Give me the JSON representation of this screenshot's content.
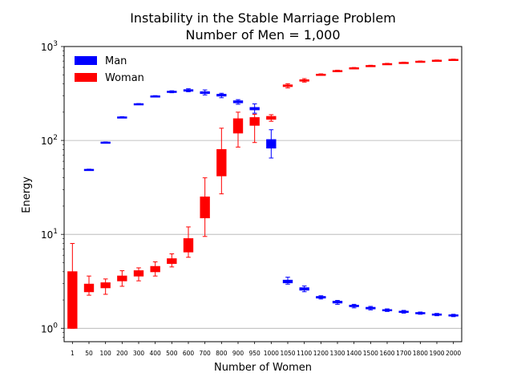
{
  "chart_data": {
    "type": "box",
    "title": "Instability in the Stable Marriage Problem",
    "subtitle": "Number of Men = 1,000",
    "xlabel": "Number of Women",
    "ylabel": "Energy",
    "yscale": "log",
    "ylim": [
      0.72,
      1000
    ],
    "yticks": [
      {
        "value": 1,
        "base": "10",
        "exp": "0"
      },
      {
        "value": 10,
        "base": "10",
        "exp": "1"
      },
      {
        "value": 100,
        "base": "10",
        "exp": "2"
      },
      {
        "value": 1000,
        "base": "10",
        "exp": "3"
      }
    ],
    "grid": "y-major",
    "legend_position": "top-left",
    "categories": [
      "1",
      "50",
      "100",
      "200",
      "300",
      "400",
      "500",
      "600",
      "700",
      "800",
      "900",
      "950",
      "1000",
      "1050",
      "1100",
      "1200",
      "1300",
      "1400",
      "1500",
      "1600",
      "1700",
      "1800",
      "1900",
      "2000"
    ],
    "series": [
      {
        "name": "Man",
        "color": "#0000ff",
        "boxes": [
          null,
          {
            "whislo": 48.5,
            "q1": 48.8,
            "med": 49,
            "q3": 49.2,
            "whishi": 49.5
          },
          {
            "whislo": 94.5,
            "q1": 95,
            "med": 95.5,
            "q3": 96,
            "whishi": 96.5
          },
          {
            "whislo": 175,
            "q1": 176,
            "med": 177,
            "q3": 178,
            "whishi": 179
          },
          {
            "whislo": 243,
            "q1": 244,
            "med": 245,
            "q3": 246,
            "whishi": 247
          },
          {
            "whislo": 292,
            "q1": 294,
            "med": 296,
            "q3": 298,
            "whishi": 300
          },
          {
            "whislo": 322,
            "q1": 326,
            "med": 330,
            "q3": 334,
            "whishi": 338
          },
          {
            "whislo": 330,
            "q1": 335,
            "med": 340,
            "q3": 347,
            "whishi": 355
          },
          {
            "whislo": 305,
            "q1": 316,
            "med": 322,
            "q3": 330,
            "whishi": 345
          },
          {
            "whislo": 285,
            "q1": 297,
            "med": 303,
            "q3": 310,
            "whishi": 318
          },
          {
            "whislo": 243,
            "q1": 252,
            "med": 258,
            "q3": 264,
            "whishi": 272
          },
          {
            "whislo": 195,
            "q1": 212,
            "med": 218,
            "q3": 224,
            "whishi": 245
          },
          {
            "whislo": 65,
            "q1": 83,
            "med": 90,
            "q3": 102,
            "whishi": 130
          },
          {
            "whislo": 2.95,
            "q1": 3.05,
            "med": 3.15,
            "q3": 3.25,
            "whishi": 3.5
          },
          {
            "whislo": 2.45,
            "q1": 2.55,
            "med": 2.62,
            "q3": 2.7,
            "whishi": 2.82
          },
          {
            "whislo": 2.05,
            "q1": 2.1,
            "med": 2.14,
            "q3": 2.18,
            "whishi": 2.22
          },
          {
            "whislo": 1.8,
            "q1": 1.86,
            "med": 1.9,
            "q3": 1.94,
            "whishi": 1.98
          },
          {
            "whislo": 1.65,
            "q1": 1.7,
            "med": 1.73,
            "q3": 1.76,
            "whishi": 1.8
          },
          {
            "whislo": 1.57,
            "q1": 1.61,
            "med": 1.64,
            "q3": 1.67,
            "whishi": 1.71
          },
          {
            "whislo": 1.51,
            "q1": 1.54,
            "med": 1.56,
            "q3": 1.58,
            "whishi": 1.61
          },
          {
            "whislo": 1.45,
            "q1": 1.48,
            "med": 1.5,
            "q3": 1.52,
            "whishi": 1.55
          },
          {
            "whislo": 1.41,
            "q1": 1.43,
            "med": 1.45,
            "q3": 1.47,
            "whishi": 1.49
          },
          {
            "whislo": 1.36,
            "q1": 1.38,
            "med": 1.4,
            "q3": 1.42,
            "whishi": 1.44
          },
          {
            "whislo": 1.33,
            "q1": 1.35,
            "med": 1.37,
            "q3": 1.39,
            "whishi": 1.41
          }
        ]
      },
      {
        "name": "Woman",
        "color": "#ff0000",
        "boxes": [
          {
            "whislo": 1,
            "q1": 1,
            "med": 2,
            "q3": 4,
            "whishi": 8
          },
          {
            "whislo": 2.25,
            "q1": 2.45,
            "med": 2.7,
            "q3": 2.95,
            "whishi": 3.6
          },
          {
            "whislo": 2.3,
            "q1": 2.7,
            "med": 2.85,
            "q3": 3.05,
            "whishi": 3.35
          },
          {
            "whislo": 2.8,
            "q1": 3.2,
            "med": 3.4,
            "q3": 3.6,
            "whishi": 4.1
          },
          {
            "whislo": 3.2,
            "q1": 3.6,
            "med": 3.85,
            "q3": 4.1,
            "whishi": 4.4
          },
          {
            "whislo": 3.6,
            "q1": 4.0,
            "med": 4.25,
            "q3": 4.55,
            "whishi": 5.1
          },
          {
            "whislo": 4.5,
            "q1": 4.9,
            "med": 5.2,
            "q3": 5.5,
            "whishi": 6.2
          },
          {
            "whislo": 5.7,
            "q1": 6.5,
            "med": 7.5,
            "q3": 9.0,
            "whishi": 12
          },
          {
            "whislo": 9.5,
            "q1": 15,
            "med": 19,
            "q3": 25,
            "whishi": 40
          },
          {
            "whislo": 27,
            "q1": 42,
            "med": 55,
            "q3": 80,
            "whishi": 135
          },
          {
            "whislo": 85,
            "q1": 120,
            "med": 140,
            "q3": 170,
            "whishi": 200
          },
          {
            "whislo": 95,
            "q1": 145,
            "med": 160,
            "q3": 175,
            "whishi": 190
          },
          {
            "whislo": 160,
            "q1": 168,
            "med": 172,
            "q3": 180,
            "whishi": 188
          },
          {
            "whislo": 362,
            "q1": 375,
            "med": 382,
            "q3": 390,
            "whishi": 402
          },
          {
            "whislo": 418,
            "q1": 428,
            "med": 435,
            "q3": 442,
            "whishi": 455
          },
          {
            "whislo": 495,
            "q1": 500,
            "med": 503,
            "q3": 507,
            "whishi": 512
          },
          {
            "whislo": 540,
            "q1": 545,
            "med": 550,
            "q3": 555,
            "whishi": 560
          },
          {
            "whislo": 582,
            "q1": 587,
            "med": 590,
            "q3": 594,
            "whishi": 598
          },
          {
            "whislo": 615,
            "q1": 620,
            "med": 624,
            "q3": 628,
            "whishi": 632
          },
          {
            "whislo": 645,
            "q1": 650,
            "med": 654,
            "q3": 658,
            "whishi": 662
          },
          {
            "whislo": 668,
            "q1": 672,
            "med": 675,
            "q3": 678,
            "whishi": 682
          },
          {
            "whislo": 688,
            "q1": 692,
            "med": 695,
            "q3": 698,
            "whishi": 702
          },
          {
            "whislo": 705,
            "q1": 709,
            "med": 712,
            "q3": 715,
            "whishi": 719
          },
          {
            "whislo": 720,
            "q1": 724,
            "med": 727,
            "q3": 730,
            "whishi": 734
          }
        ]
      }
    ]
  }
}
